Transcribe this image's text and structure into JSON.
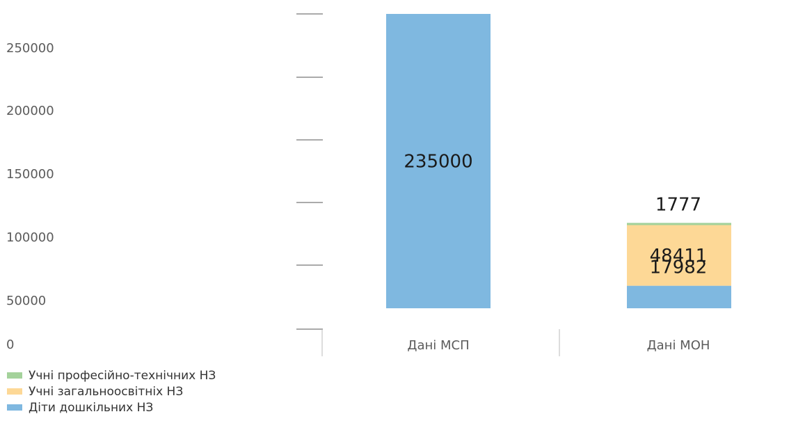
{
  "chart_data": {
    "type": "bar",
    "stacked": true,
    "categories": [
      "Дані МСП",
      "Дані МОН"
    ],
    "y_ticks": [
      "0",
      "50000",
      "100000",
      "150000",
      "200000",
      "250000"
    ],
    "ylim": [
      0,
      270000
    ],
    "grid": false,
    "legend_position": "bottom-left",
    "series": [
      {
        "name": "Діти дошкільних НЗ",
        "color": "#7fb8e0",
        "values": [
          235000,
          17982
        ]
      },
      {
        "name": "Учні загальноосвітніх НЗ",
        "color": "#fdd896",
        "values": [
          null,
          48411
        ]
      },
      {
        "name": "Учні професійно-технічних НЗ",
        "color": "#a4d29b",
        "values": [
          null,
          1777
        ]
      }
    ],
    "data_labels": [
      [
        "235000",
        "17982"
      ],
      [
        null,
        "48411"
      ],
      [
        null,
        "1777"
      ]
    ]
  }
}
